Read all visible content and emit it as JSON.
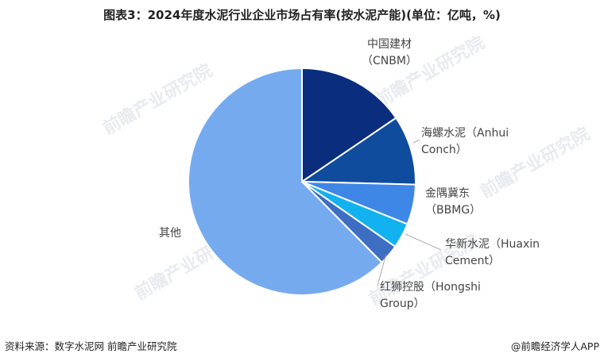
{
  "title": "图表3：2024年度水泥行业企业市场占有率(按水泥产能)(单位：亿吨，%)",
  "footer": {
    "source": "资料来源：数字水泥网 前瞻产业研究院",
    "brand": "@前瞻经济学人APP",
    "watermark": "前瞻产业研究院"
  },
  "chart_data": {
    "type": "pie",
    "start_angle_deg": 0,
    "direction": "clockwise",
    "slices": [
      {
        "label_lines": [
          "中国建材",
          "（CNBM）"
        ],
        "value": 15.5,
        "color": "#0a2e7d"
      },
      {
        "label_lines": [
          "海螺水泥（Anhui",
          "Conch）"
        ],
        "value": 9.9,
        "color": "#0f4c9e"
      },
      {
        "label_lines": [
          "金隅冀东",
          "（BBMG）"
        ],
        "value": 5.7,
        "color": "#3f87e6"
      },
      {
        "label_lines": [
          "华新水泥（Huaxin",
          "Cement）"
        ],
        "value": 3.6,
        "color": "#12b2f0"
      },
      {
        "label_lines": [
          "红狮控股（Hongshi",
          "Group）"
        ],
        "value": 2.9,
        "color": "#3d6ec2"
      },
      {
        "label_lines": [
          "其他"
        ],
        "value": 62.4,
        "color": "#76aaee"
      }
    ]
  }
}
